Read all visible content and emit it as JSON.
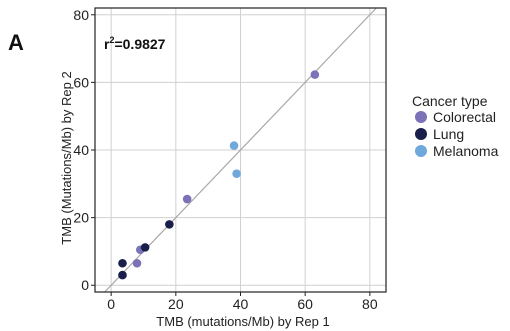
{
  "panel_label": "A",
  "annotation": {
    "prefix": "r",
    "superscript": "2",
    "value": "=0.9827"
  },
  "colors": {
    "Colorectal": "#7b72b8",
    "Lung": "#1a1e4a",
    "Melanoma": "#6fa9dc",
    "grid": "#d0d0d0",
    "diagonal": "#a8a8a8",
    "axis": "#222222"
  },
  "chart_data": {
    "type": "scatter",
    "xlabel": "TMB (mutations/Mb) by Rep 1",
    "ylabel": "TMB (Mutations/Mb) by Rep 2",
    "xlim": [
      -5,
      85
    ],
    "ylim": [
      -2,
      82
    ],
    "xticks": [
      0,
      20,
      40,
      60,
      80
    ],
    "yticks": [
      0,
      20,
      40,
      60,
      80
    ],
    "grid": true,
    "reference_line": "y = x",
    "legend": {
      "title": "Cancer type",
      "position": "right"
    },
    "series": [
      {
        "name": "Colorectal",
        "points": [
          [
            63,
            62.3
          ],
          [
            23.5,
            25.5
          ],
          [
            9,
            10.5
          ],
          [
            8,
            6.5
          ]
        ]
      },
      {
        "name": "Lung",
        "points": [
          [
            18,
            18
          ],
          [
            10.5,
            11.2
          ],
          [
            3.5,
            6.5
          ],
          [
            3.5,
            3
          ]
        ]
      },
      {
        "name": "Melanoma",
        "points": [
          [
            38,
            41.3
          ],
          [
            38.8,
            33
          ]
        ]
      }
    ]
  }
}
